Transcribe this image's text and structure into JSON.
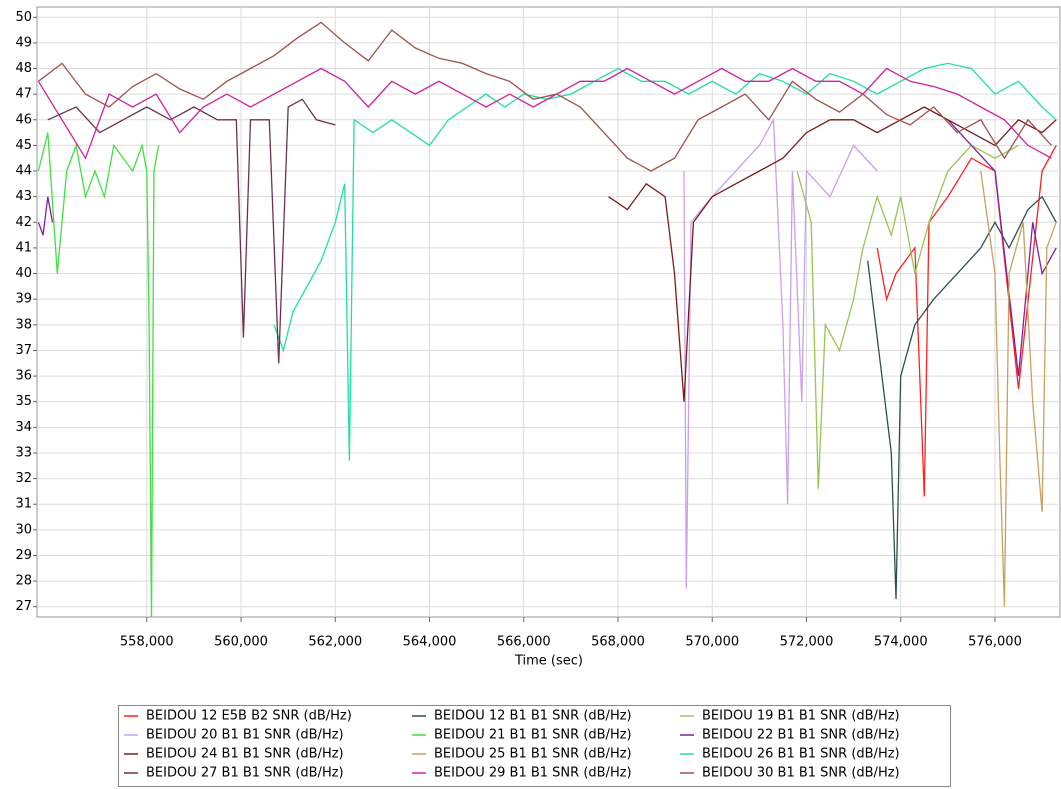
{
  "chart_data": {
    "type": "line",
    "x_label": "Time (sec)",
    "xlim": [
      555670,
      577380
    ],
    "ylim": [
      26.6,
      50.4
    ],
    "xticks": [
      {
        "value": 558000,
        "label": "558,000"
      },
      {
        "value": 560000,
        "label": "560,000"
      },
      {
        "value": 562000,
        "label": "562,000"
      },
      {
        "value": 564000,
        "label": "564,000"
      },
      {
        "value": 566000,
        "label": "566,000"
      },
      {
        "value": 568000,
        "label": "568,000"
      },
      {
        "value": 570000,
        "label": "570,000"
      },
      {
        "value": 572000,
        "label": "572,000"
      },
      {
        "value": 574000,
        "label": "574,000"
      },
      {
        "value": 576000,
        "label": "576,000"
      }
    ],
    "yticks": [
      27,
      28,
      29,
      30,
      31,
      32,
      33,
      34,
      35,
      36,
      37,
      38,
      39,
      40,
      41,
      42,
      43,
      44,
      45,
      46,
      47,
      48,
      49,
      50
    ],
    "grid": true,
    "legend": "bottom",
    "series": [
      {
        "name": "BEIDOU 12 E5B B2 SNR (dB/Hz)",
        "color": "#ff2020",
        "x": [
          573500,
          573700,
          573900,
          574100,
          574300,
          574500,
          574600,
          575000,
          575500,
          576000,
          576500,
          577000,
          577300
        ],
        "values": [
          41,
          39,
          40,
          40.5,
          41,
          31.3,
          42,
          43,
          44.5,
          44,
          35.5,
          44,
          45
        ]
      },
      {
        "name": "BEIDOU 12 B1 B1 SNR (dB/Hz)",
        "color": "#2f4f4f",
        "x": [
          573300,
          573600,
          573800,
          573900,
          574000,
          574300,
          574700,
          575200,
          575700,
          576000,
          576300,
          576700,
          577000,
          577300
        ],
        "values": [
          40.5,
          36,
          33,
          27.3,
          36,
          38,
          39,
          40,
          41,
          42,
          41,
          42.5,
          43,
          42
        ]
      },
      {
        "name": "BEIDOU 19 B1 B1 SNR (dB/Hz)",
        "color": "#9ac454",
        "x": [
          571800,
          572100,
          572250,
          572400,
          572700,
          573000,
          573200,
          573500,
          573800,
          574000,
          574300,
          574600,
          575000,
          575500,
          576000,
          576500
        ],
        "values": [
          44,
          42,
          31.6,
          38,
          37,
          39,
          41,
          43,
          41.5,
          43,
          40,
          42,
          44,
          45,
          44.5,
          45
        ]
      },
      {
        "name": "BEIDOU 20 B1 B1 SNR (dB/Hz)",
        "color": "#c8a0f0",
        "x": [
          569400,
          569450,
          569550,
          570000,
          570500,
          571000,
          571300,
          571500,
          571600,
          571700,
          571900,
          572000,
          572500,
          573000,
          573500
        ],
        "values": [
          44,
          27.7,
          42,
          43,
          44,
          45,
          46,
          38,
          31,
          44,
          35,
          44,
          43,
          45,
          44
        ]
      },
      {
        "name": "BEIDOU 21 B1 B1 SNR (dB/Hz)",
        "color": "#40e040",
        "x": [
          555700,
          555900,
          556100,
          556300,
          556500,
          556700,
          556900,
          557100,
          557300,
          557500,
          557700,
          557900,
          558000,
          558050,
          558100,
          558150,
          558250
        ],
        "values": [
          44,
          45.5,
          40,
          44,
          45,
          43,
          44,
          43,
          45,
          44.5,
          44,
          45,
          44,
          38,
          26.5,
          44,
          45
        ]
      },
      {
        "name": "BEIDOU 22 B1 B1 SNR (dB/Hz)",
        "color": "#8020a0",
        "x": [
          555700,
          555800,
          555900,
          556000,
          556100,
          575000,
          575500,
          576000,
          576500,
          576800,
          577000,
          577300
        ],
        "values": [
          42,
          41.5,
          43,
          42,
          null,
          46,
          45,
          44,
          36,
          42,
          40,
          41
        ]
      },
      {
        "name": "BEIDOU 24 B1 B1 SNR (dB/Hz)",
        "color": "#7a1a1a",
        "x": [
          567800,
          568200,
          568600,
          569000,
          569200,
          569400,
          569600,
          570000,
          570500,
          571000,
          571500,
          572000,
          572500,
          573000,
          573500,
          574000,
          574500,
          575000,
          575500,
          576000,
          576500,
          577000,
          577300
        ],
        "values": [
          43,
          42.5,
          43.5,
          43,
          40,
          35,
          42,
          43,
          43.5,
          44,
          44.5,
          45.5,
          46,
          46,
          45.5,
          46,
          46.5,
          46,
          45.5,
          45,
          46,
          45.5,
          46
        ]
      },
      {
        "name": "BEIDOU 25 B1 B1 SNR (dB/Hz)",
        "color": "#c8a060",
        "x": [
          575700,
          576000,
          576100,
          576200,
          576300,
          576600,
          576800,
          577000,
          577100,
          577300
        ],
        "values": [
          44,
          40,
          33,
          27,
          40,
          42,
          35,
          30.7,
          41,
          42
        ]
      },
      {
        "name": "BEIDOU 26 B1 B1 SNR (dB/Hz)",
        "color": "#20e0a0",
        "x": [
          560700,
          560900,
          561100,
          561400,
          561700,
          562000,
          562200,
          562300,
          562400,
          562800,
          563200,
          563600,
          564000,
          564400,
          564800,
          565200,
          565600,
          566000,
          566500,
          567000,
          567500,
          568000,
          568500,
          569000,
          569500,
          570000,
          570500,
          571000,
          571500,
          572000,
          572500,
          573000,
          573500,
          574000,
          574500,
          575000,
          575500,
          576000,
          576500,
          577000,
          577300
        ],
        "values": [
          38,
          37,
          38.5,
          39.5,
          40.5,
          42,
          43.5,
          32.7,
          46,
          45.5,
          46,
          45.5,
          45,
          46,
          46.5,
          47,
          46.5,
          47,
          46.8,
          47,
          47.5,
          48,
          47.5,
          47.5,
          47,
          47.5,
          47,
          47.8,
          47.5,
          47,
          47.8,
          47.5,
          47,
          47.5,
          48,
          48.2,
          48,
          47,
          47.5,
          46.5,
          46
        ]
      },
      {
        "name": "BEIDOU 27 B1 B1 SNR (dB/Hz)",
        "color": "#6e3050",
        "x": [
          555900,
          556500,
          557000,
          557500,
          558000,
          558500,
          559000,
          559500,
          559900,
          560050,
          560200,
          560600,
          560800,
          561000,
          561300,
          561600,
          562000
        ],
        "values": [
          46,
          46.5,
          45.5,
          46,
          46.5,
          46,
          46.5,
          46,
          46,
          37.5,
          46,
          46,
          36.5,
          46.5,
          46.8,
          46,
          45.8
        ]
      },
      {
        "name": "BEIDOU 29 B1 B1 SNR (dB/Hz)",
        "color": "#d020a0",
        "x": [
          555700,
          556200,
          556700,
          557200,
          557700,
          558200,
          558700,
          559200,
          559700,
          560200,
          560700,
          561200,
          561700,
          562200,
          562700,
          563200,
          563700,
          564200,
          564700,
          565200,
          565700,
          566200,
          566700,
          567200,
          567700,
          568200,
          568700,
          569200,
          569700,
          570200,
          570700,
          571200,
          571700,
          572200,
          572700,
          573200,
          573700,
          574200,
          574700,
          575200,
          575700,
          576200,
          576700,
          577200
        ],
        "values": [
          47.5,
          46,
          44.5,
          47,
          46.5,
          47,
          45.5,
          46.5,
          47,
          46.5,
          47,
          47.5,
          48,
          47.5,
          46.5,
          47.5,
          47,
          47.5,
          47,
          46.5,
          47,
          46.5,
          47,
          47.5,
          47.5,
          48,
          47.5,
          47,
          47.5,
          48,
          47.5,
          47.5,
          48,
          47.5,
          47.5,
          47,
          48,
          47.5,
          47.3,
          47,
          46.5,
          46,
          45,
          44.5
        ]
      },
      {
        "name": "BEIDOU 30 B1 B1 SNR (dB/Hz)",
        "color": "#a0524e",
        "x": [
          555700,
          556200,
          556700,
          557200,
          557700,
          558200,
          558700,
          559200,
          559700,
          560200,
          560700,
          561200,
          561700,
          562200,
          562700,
          563200,
          563700,
          564200,
          564700,
          565200,
          565700,
          566200,
          566700,
          567200,
          567700,
          568200,
          568700,
          569200,
          569700,
          570200,
          570700,
          571200,
          571700,
          572200,
          572700,
          573200,
          573700,
          574200,
          574700,
          575200,
          575700,
          576200,
          576700,
          577200
        ],
        "values": [
          47.5,
          48.2,
          47,
          46.5,
          47.3,
          47.8,
          47.2,
          46.8,
          47.5,
          48,
          48.5,
          49.2,
          49.8,
          49,
          48.3,
          49.5,
          48.8,
          48.4,
          48.2,
          47.8,
          47.5,
          46.8,
          47,
          46.5,
          45.5,
          44.5,
          44,
          44.5,
          46,
          46.5,
          47,
          46,
          47.5,
          46.8,
          46.3,
          47,
          46.2,
          45.8,
          46.5,
          45.5,
          46,
          44.5,
          46,
          45
        ]
      }
    ]
  }
}
